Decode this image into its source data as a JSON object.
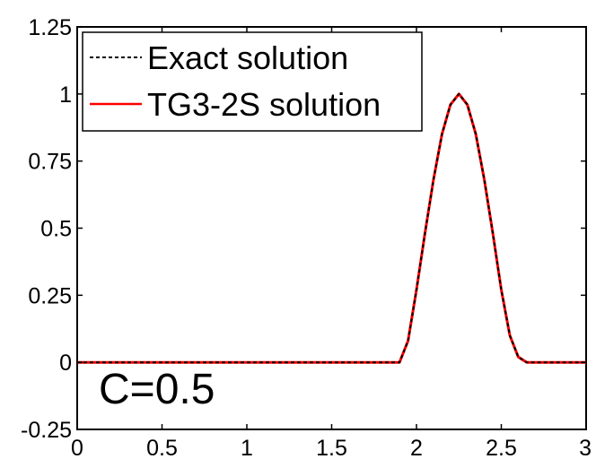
{
  "chart_data": {
    "type": "line",
    "xlim": [
      0,
      3
    ],
    "ylim": [
      -0.25,
      1.25
    ],
    "x_ticks": [
      "0",
      "0.5",
      "1",
      "1.5",
      "2",
      "2.5",
      "3"
    ],
    "y_ticks": [
      "1.25",
      "1",
      "0.75",
      "0.5",
      "0.25",
      "0",
      "-0.25"
    ],
    "grid": false,
    "legend_position": "top-left",
    "annotation": "C=0.5",
    "series": [
      {
        "name": "Exact solution",
        "color": "#000000",
        "style": "dashed",
        "x": [
          0,
          1.8,
          1.9,
          1.95,
          2.0,
          2.05,
          2.1,
          2.15,
          2.2,
          2.25,
          2.3,
          2.35,
          2.4,
          2.45,
          2.5,
          2.55,
          2.6,
          2.65,
          2.7,
          3.0
        ],
        "y": [
          0,
          0,
          0,
          0.08,
          0.27,
          0.48,
          0.68,
          0.85,
          0.96,
          1.0,
          0.96,
          0.85,
          0.68,
          0.48,
          0.27,
          0.1,
          0.02,
          0,
          0,
          0
        ]
      },
      {
        "name": "TG3-2S solution",
        "color": "#ff0000",
        "style": "solid",
        "x": [
          0,
          1.8,
          1.9,
          1.95,
          2.0,
          2.05,
          2.1,
          2.15,
          2.2,
          2.25,
          2.3,
          2.35,
          2.4,
          2.45,
          2.5,
          2.55,
          2.6,
          2.65,
          2.7,
          3.0
        ],
        "y": [
          0,
          0,
          0,
          0.08,
          0.27,
          0.48,
          0.68,
          0.85,
          0.96,
          1.0,
          0.96,
          0.85,
          0.68,
          0.48,
          0.27,
          0.1,
          0.02,
          0,
          0,
          0
        ]
      }
    ]
  }
}
